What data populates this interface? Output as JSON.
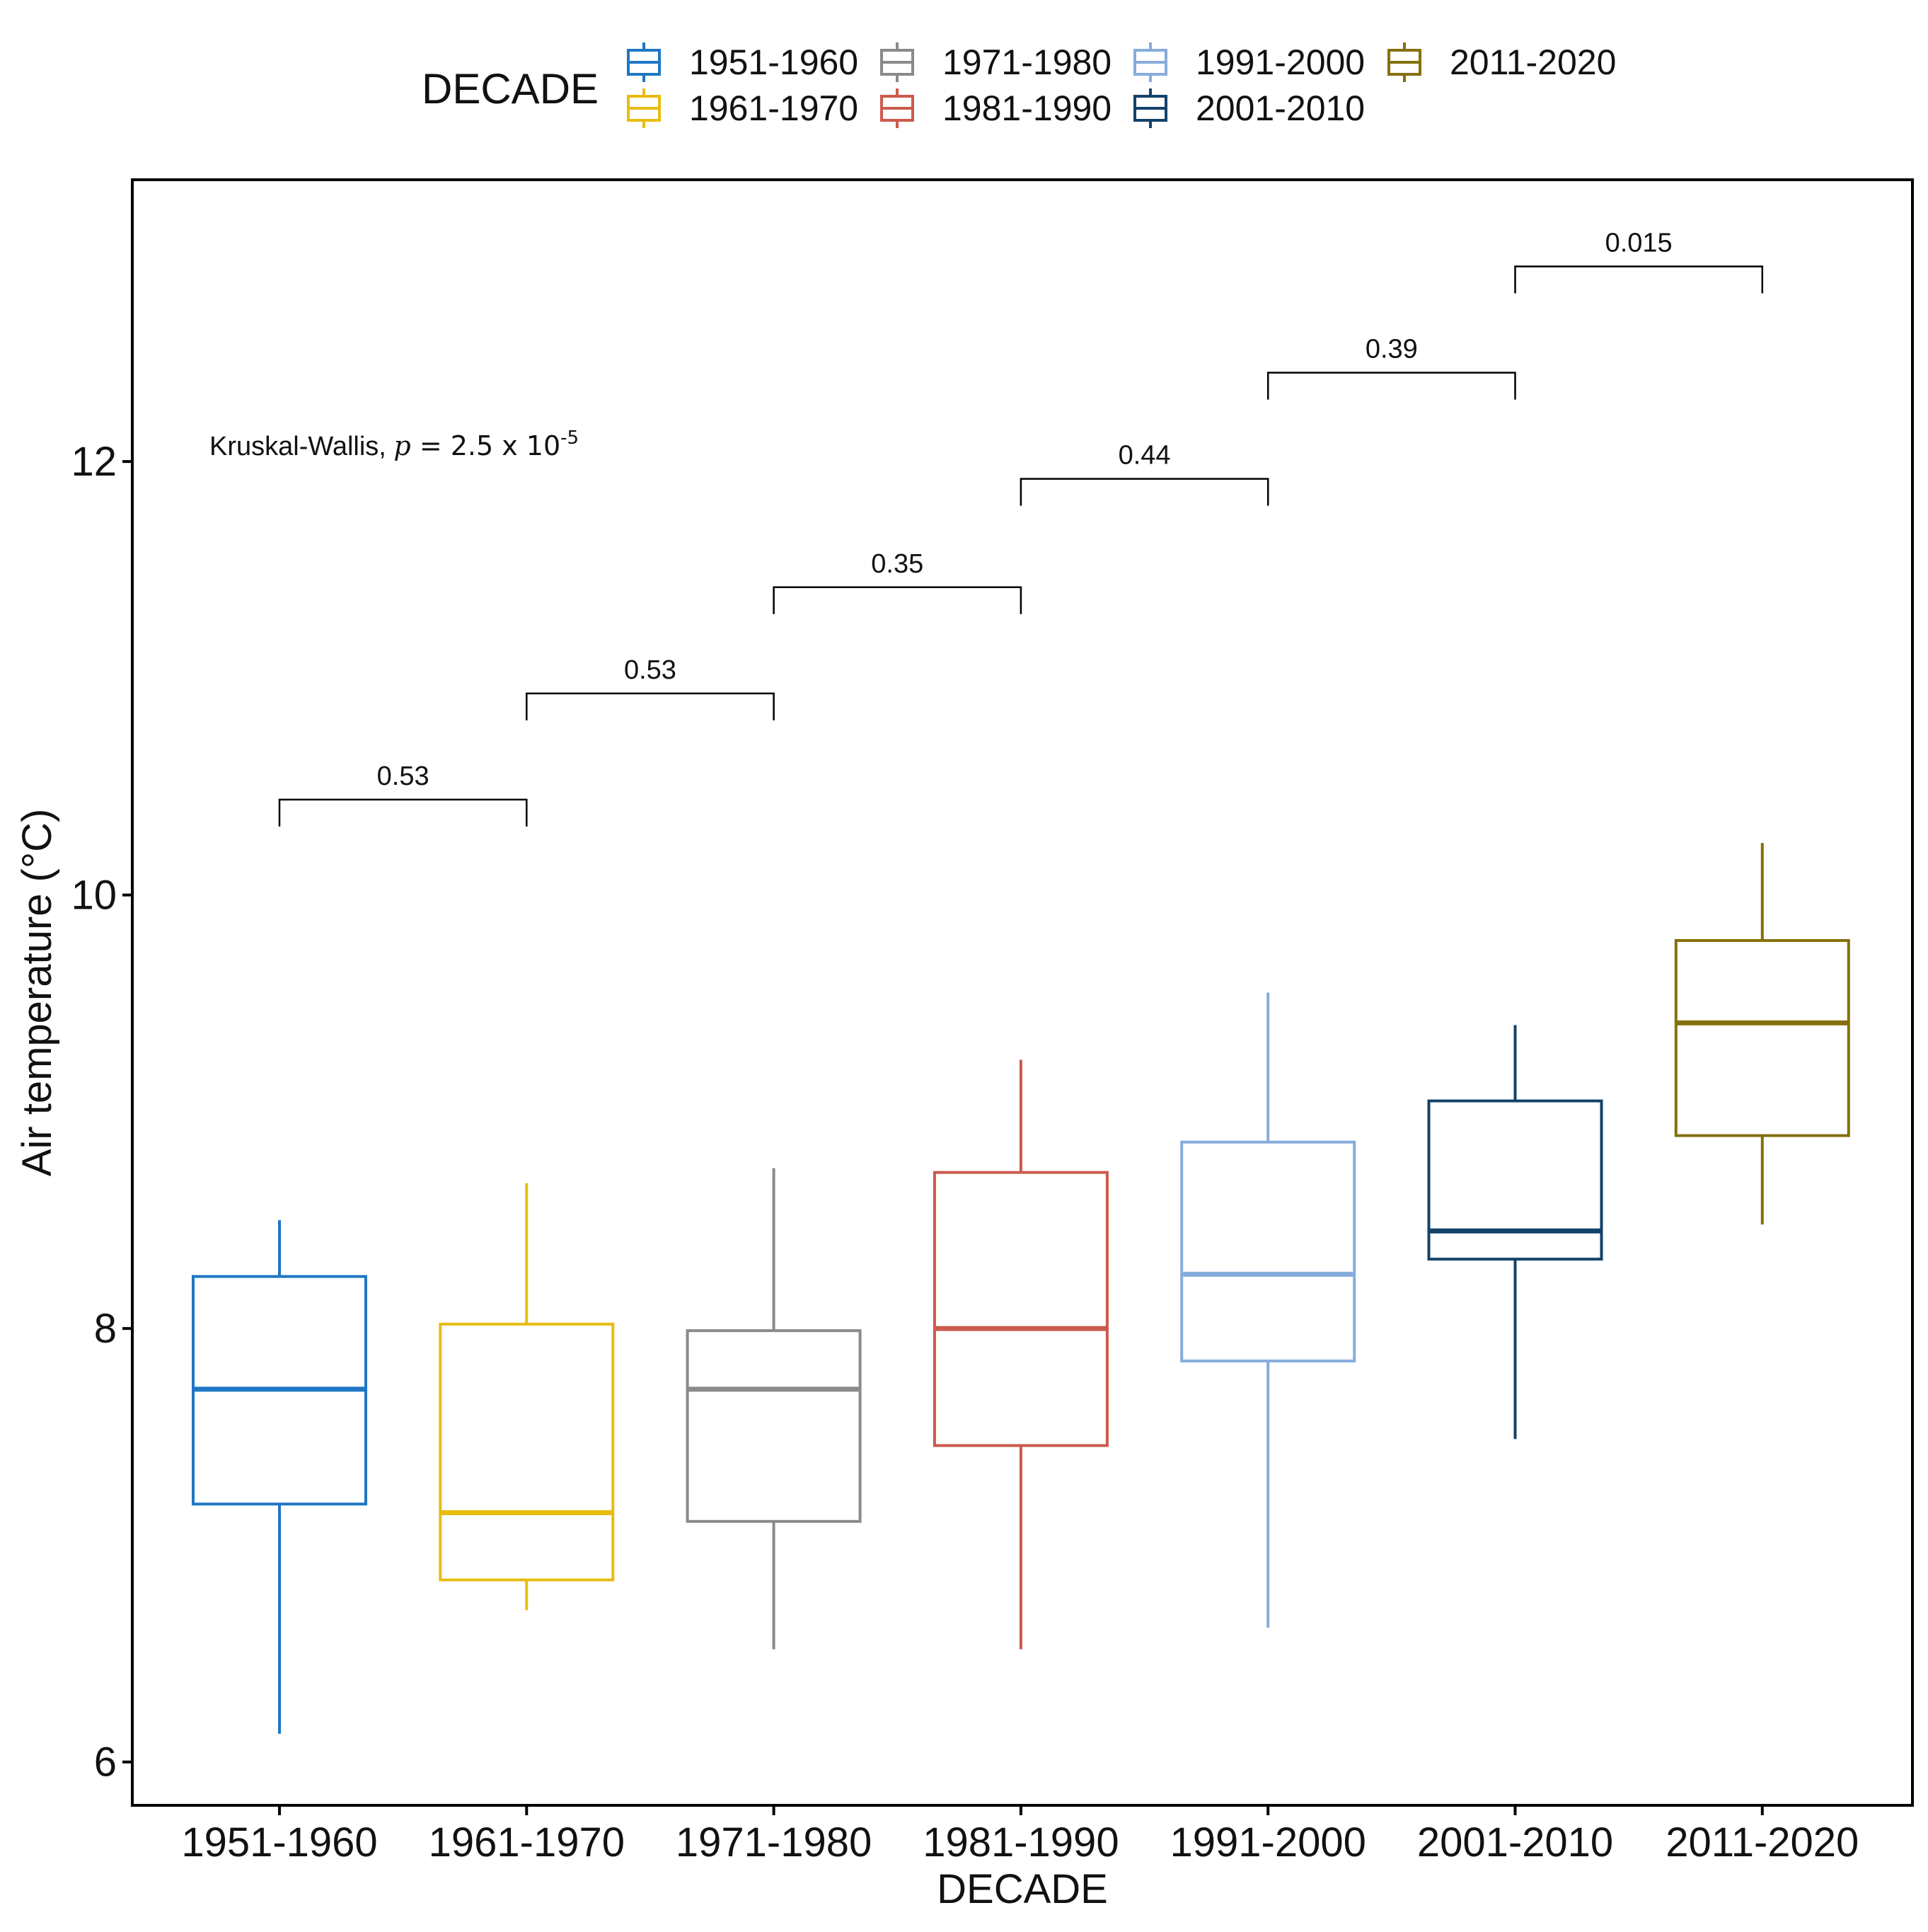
{
  "chart_data": {
    "type": "box",
    "title": "",
    "xlabel": "DECADE",
    "ylabel": "Air temperature (°C)",
    "ylim": [
      5.8,
      13.3
    ],
    "yticks": [
      6,
      8,
      10,
      12
    ],
    "categories": [
      "1951-1960",
      "1961-1970",
      "1971-1980",
      "1981-1990",
      "1991-2000",
      "2001-2010",
      "2011-2020"
    ],
    "colors": [
      "#1f77c4",
      "#e8bd12",
      "#8a8a8a",
      "#cc5a4e",
      "#86acdc",
      "#13426b",
      "#85700d"
    ],
    "boxes": [
      {
        "min": 6.13,
        "q1": 7.19,
        "median": 7.72,
        "q3": 8.24,
        "max": 8.5
      },
      {
        "min": 6.7,
        "q1": 6.84,
        "median": 7.15,
        "q3": 8.02,
        "max": 8.67
      },
      {
        "min": 6.52,
        "q1": 7.11,
        "median": 7.72,
        "q3": 7.99,
        "max": 8.74
      },
      {
        "min": 6.52,
        "q1": 7.46,
        "median": 8.0,
        "q3": 8.72,
        "max": 9.24
      },
      {
        "min": 6.62,
        "q1": 7.85,
        "median": 8.25,
        "q3": 8.86,
        "max": 9.55
      },
      {
        "min": 7.49,
        "q1": 8.32,
        "median": 8.45,
        "q3": 9.05,
        "max": 9.4
      },
      {
        "min": 8.48,
        "q1": 8.89,
        "median": 9.41,
        "q3": 9.79,
        "max": 10.24
      }
    ],
    "legend": {
      "title": "DECADE",
      "position": "top",
      "entries": [
        "1951-1960",
        "1961-1970",
        "1971-1980",
        "1981-1990",
        "1991-2000",
        "2001-2010",
        "2011-2020"
      ]
    },
    "comparisons": [
      {
        "from": 0,
        "to": 1,
        "label": "0.53",
        "y": 10.44
      },
      {
        "from": 1,
        "to": 2,
        "label": "0.53",
        "y": 10.93
      },
      {
        "from": 2,
        "to": 3,
        "label": "0.35",
        "y": 11.42
      },
      {
        "from": 3,
        "to": 4,
        "label": "0.44",
        "y": 11.92
      },
      {
        "from": 4,
        "to": 5,
        "label": "0.39",
        "y": 12.41
      },
      {
        "from": 5,
        "to": 6,
        "label": "0.015",
        "y": 12.9
      }
    ],
    "annotation": {
      "test": "Kruskal-Wallis,",
      "p_symbol": "p",
      "p_value": "= 2.5 x 10",
      "p_exponent": "-5",
      "x_category_index": 0,
      "y": 12.03
    },
    "grid": false
  }
}
